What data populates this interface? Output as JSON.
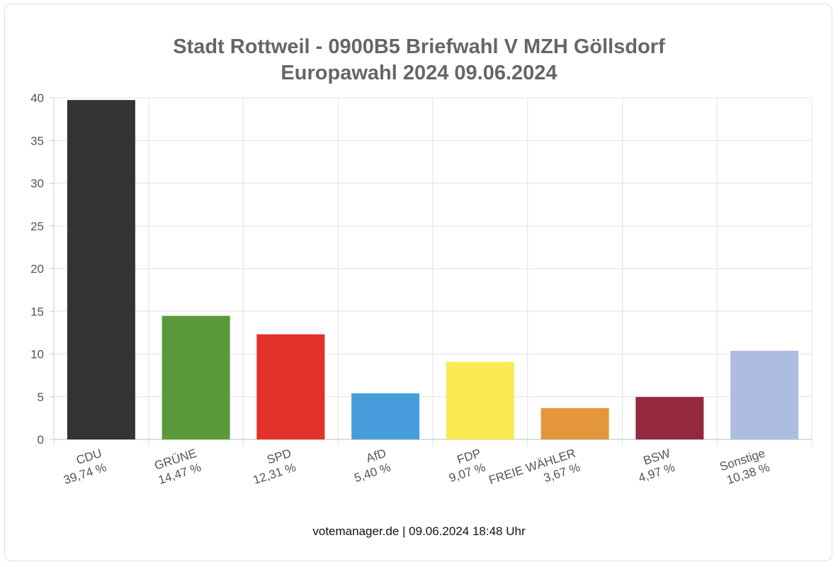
{
  "chart_data": {
    "type": "bar",
    "title": "Stadt Rottweil - 0900B5 Briefwahl V MZH Göllsdorf",
    "subtitle": "Europawahl 2024 09.06.2024",
    "categories": [
      "CDU",
      "GRÜNE",
      "SPD",
      "AfD",
      "FDP",
      "FREIE WÄHLER",
      "BSW",
      "Sonstige"
    ],
    "values": [
      39.74,
      14.47,
      12.31,
      5.4,
      9.07,
      3.67,
      4.97,
      10.38
    ],
    "value_labels": [
      "39,74 %",
      "14,47 %",
      "12,31 %",
      "5,40 %",
      "9,07 %",
      "3,67 %",
      "4,97 %",
      "10,38 %"
    ],
    "colors": [
      "#333333",
      "#5a9a3a",
      "#e4312b",
      "#479ddb",
      "#f9ea54",
      "#e4963a",
      "#93283f",
      "#adbde1"
    ],
    "y_ticks": [
      "0",
      "5",
      "10",
      "15",
      "20",
      "25",
      "30",
      "35",
      "40"
    ],
    "ylim": [
      0,
      40
    ],
    "grid": true,
    "xlabel": "",
    "ylabel": ""
  },
  "footer": "votemanager.de | 09.06.2024 18:48 Uhr"
}
